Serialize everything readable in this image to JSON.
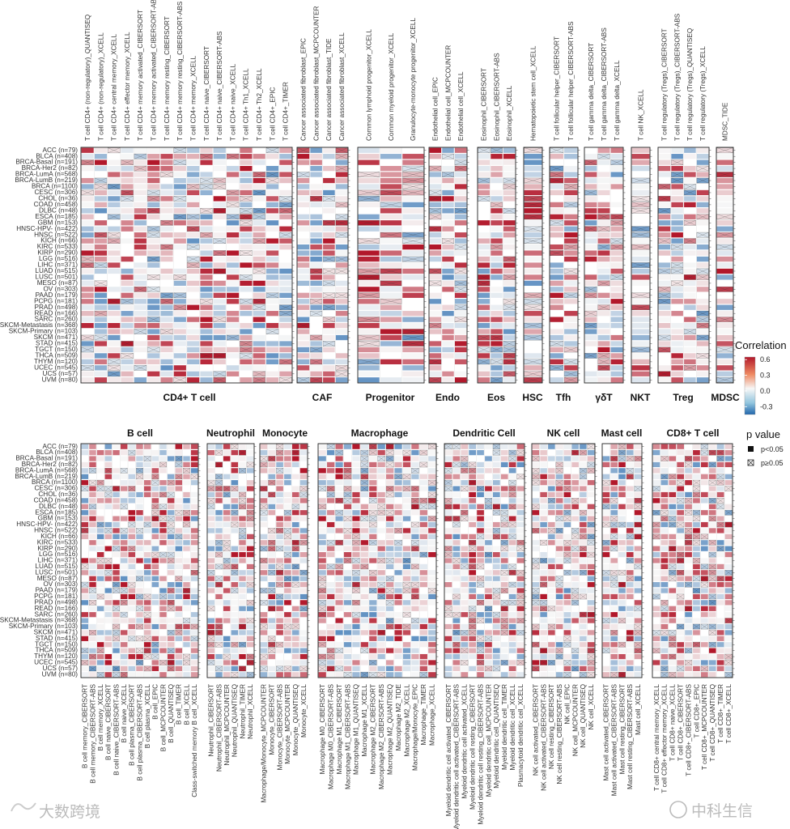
{
  "chart_data": {
    "type": "heatmap",
    "value_range": [
      -0.45,
      0.65
    ],
    "rows": [
      "ACC (n=79)",
      "BLCA (n=408)",
      "BRCA-Basal (n=191)",
      "BRCA-Her2 (n=82)",
      "BRCA-LumA (n=568)",
      "BRCA-LumB (n=219)",
      "BRCA (n=1100)",
      "CESC (n=306)",
      "CHOL (n=36)",
      "COAD (n=458)",
      "DLBC (n=48)",
      "ESCA (n=185)",
      "GBM (n=153)",
      "HNSC-HPV- (n=422)",
      "HNSC (n=522)",
      "KICH (n=66)",
      "KIRC (n=533)",
      "KIRP (n=290)",
      "LGG (n=516)",
      "LIHC (n=371)",
      "LUAD (n=515)",
      "LUSC (n=501)",
      "MESO (n=87)",
      "OV (n=303)",
      "PAAD (n=179)",
      "PCPG (n=181)",
      "PRAD (n=498)",
      "READ (n=166)",
      "SARC (n=260)",
      "SKCM-Metastasis (n=368)",
      "SKCM-Primary (n=103)",
      "SKCM (n=471)",
      "STAD (n=415)",
      "TGCT (n=150)",
      "THCA (n=509)",
      "THYM (n=120)",
      "UCEC (n=545)",
      "UCS (n=57)",
      "UVM (n=80)"
    ],
    "panels": [
      {
        "name": "CD4+ T cell",
        "columns": [
          "T cell CD4+ (non-regulatory)_QUANTISEQ",
          "T cell CD4+ (non-regulatory)_XCELL",
          "T cell CD4+ central memory_XCELL",
          "T cell CD4+ effector memory_XCELL",
          "T cell CD4+ memory activated_CIBERSORT",
          "T cell CD4+ memory activated_CIBERSORT-ABS",
          "T cell CD4+ memory resting_CIBERSORT",
          "T cell CD4+ memory resting_CIBERSORT-ABS",
          "T cell CD4+ memory_XCELL",
          "T cell CD4+ naive_CIBERSORT",
          "T cell CD4+ naive_CIBERSORT-ABS",
          "T cell CD4+ naive_XCELL",
          "T cell CD4+ Th1_XCELL",
          "T cell CD4+ Th2_XCELL",
          "T cell CD4+_EPIC",
          "T cell CD4+_TIMER"
        ]
      },
      {
        "name": "CAF",
        "columns": [
          "Cancer associated fibroblast_EPIC",
          "Cancer associated fibroblast_MCPCOUNTER",
          "Cancer associated fibroblast_TIDE",
          "Cancer associated fibroblast_XCELL"
        ]
      },
      {
        "name": "Progenitor",
        "columns": [
          "Common lymphoid progenitor_XCELL",
          "Common myeloid progenitor_XCELL",
          "Granulocyte-monocyte progenitor_XCELL"
        ]
      },
      {
        "name": "Endo",
        "columns": [
          "Endothelial cell_EPIC",
          "Endothelial cell_MCPCOUNTER",
          "Endothelial cell_XCELL"
        ]
      },
      {
        "name": "Eos",
        "columns": [
          "Eosinophil_CIBERSORT",
          "Eosinophil_CIBERSORT-ABS",
          "Eosinophil_XCELL"
        ]
      },
      {
        "name": "HSC",
        "columns": [
          "Hematopoietic stem cell_XCELL"
        ]
      },
      {
        "name": "Tfh",
        "columns": [
          "T cell follicular helper_CIBERSORT",
          "T cell follicular helper_CIBERSORT-ABS"
        ]
      },
      {
        "name": "γδT",
        "columns": [
          "T cell gamma delta_CIBERSORT",
          "T cell gamma delta_CIBERSORT-ABS",
          "T cell gamma delta_XCELL"
        ]
      },
      {
        "name": "NKT",
        "columns": [
          "T cell NK_XCELL"
        ]
      },
      {
        "name": "Treg",
        "columns": [
          "T cell regulatory (Tregs)_CIBERSORT",
          "T cell regulatory (Tregs)_CIBERSORT-ABS",
          "T cell regulatory (Tregs)_QUANTISEQ",
          "T cell regulatory (Tregs)_XCELL"
        ]
      },
      {
        "name": "MDSC",
        "columns": [
          "MDSC_TIDE"
        ]
      },
      {
        "name": "B cell",
        "columns": [
          "B cell memory_CIBERSORT",
          "B cell memory_CIBERSORT-ABS",
          "B cell memory_XCELL",
          "B cell naive_CIBERSORT",
          "B cell naive_CIBERSORT-ABS",
          "B cell naive_XCELL",
          "B cell plasma_CIBERSORT",
          "B cell plasma_CIBERSORT-ABS",
          "B cell plasma_XCELL",
          "B cell_EPIC",
          "B cell_MCPCOUNTER",
          "B cell_QUANTISEQ",
          "B cell_TIMER",
          "B cell_XCELL",
          "Class-switched memory B cell_XCELL"
        ]
      },
      {
        "name": "Neutrophil",
        "columns": [
          "Neutrophil_CIBERSORT",
          "Neutrophil_CIBERSORT-ABS",
          "Neutrophil_MCPCOUNTER",
          "Neutrophil_QUANTISEQ",
          "Neutrophil_TIMER",
          "Neutrophil_XCELL"
        ]
      },
      {
        "name": "Monocyte",
        "columns": [
          "Macrophage/Monocyte_MCPCOUNTER",
          "Monocyte_CIBERSORT",
          "Monocyte_CIBERSORT-ABS",
          "Monocyte_MCPCOUNTER",
          "Monocyte_QUANTISEQ",
          "Monocyte_XCELL"
        ]
      },
      {
        "name": "Macrophage",
        "columns": [
          "Macrophage M0_CIBERSORT",
          "Macrophage M0_CIBERSORT-ABS",
          "Macrophage M1_CIBERSORT",
          "Macrophage M1_CIBERSORT-ABS",
          "Macrophage M1_QUANTISEQ",
          "Macrophage M1_XCELL",
          "Macrophage M2_CIBERSORT",
          "Macrophage M2_CIBERSORT-ABS",
          "Macrophage M2_QUANTISEQ",
          "Macrophage M2_TIDE",
          "Macrophage M2_XCELL",
          "Macrophage/Monocyte_EPIC",
          "Macrophage_TIMER",
          "Macrophage_XCELL"
        ]
      },
      {
        "name": "Dendritic Cell",
        "columns": [
          "Myeloid dendritic cell activated_CIBERSORT",
          "Myeloid dendritic cell activated_CIBERSORT-ABS",
          "Myeloid dendritic cell activated_XCELL",
          "Myeloid dendritic cell resting_CIBERSORT",
          "Myeloid dendritic cell resting_CIBERSORT-ABS",
          "Myeloid dendritic cell_MCPCOUNTER",
          "Myeloid dendritic cell_QUANTISEQ",
          "Myeloid dendritic cell_TIMER",
          "Myeloid dendritic cell_XCELL",
          "Plasmacytoid dendritic cell_XCELL"
        ]
      },
      {
        "name": "NK cell",
        "columns": [
          "NK cell activated_CIBERSORT",
          "NK cell activated_CIBERSORT-ABS",
          "NK cell resting_CIBERSORT",
          "NK cell resting_CIBERSORT-ABS",
          "NK cell_EPIC",
          "NK cell_MCPCOUNTER",
          "NK cell_QUANTISEQ",
          "NK cell_XCELL"
        ]
      },
      {
        "name": "Mast cell",
        "columns": [
          "Mast cell activated_CIBERSORT",
          "Mast cell activated_CIBERSORT-ABS",
          "Mast cell resting_CIBERSORT",
          "Mast cell resting_CIBERSORT-ABS",
          "Mast cell_XCELL"
        ]
      },
      {
        "name": "CD8+ T cell",
        "columns": [
          "T cell CD8+ central memory_XCELL",
          "T cell CD8+ effector memory_XCELL",
          "T cell CD8+ naive_XCELL",
          "T cell CD8+_CIBERSORT",
          "T cell CD8+_CIBERSORT-ABS",
          "T cell CD8+_EPIC",
          "T cell CD8+_MCPCOUNTER",
          "T cell CD8+_QUANTISEQ",
          "T cell CD8+_TIMER",
          "T cell CD8+_XCELL"
        ]
      }
    ],
    "legend": {
      "color_title": "Correlation",
      "color_ticks": [
        0.6,
        0.3,
        0.0,
        -0.3
      ],
      "colors": {
        "high": "#b2182b",
        "mid": "#f7f7f7",
        "low": "#2166ac"
      },
      "p_title": "p value",
      "p_entries": [
        "p<0.05",
        "p≥0.05"
      ]
    }
  },
  "watermarks": {
    "left": "大数跨境",
    "right": "中科生信"
  }
}
